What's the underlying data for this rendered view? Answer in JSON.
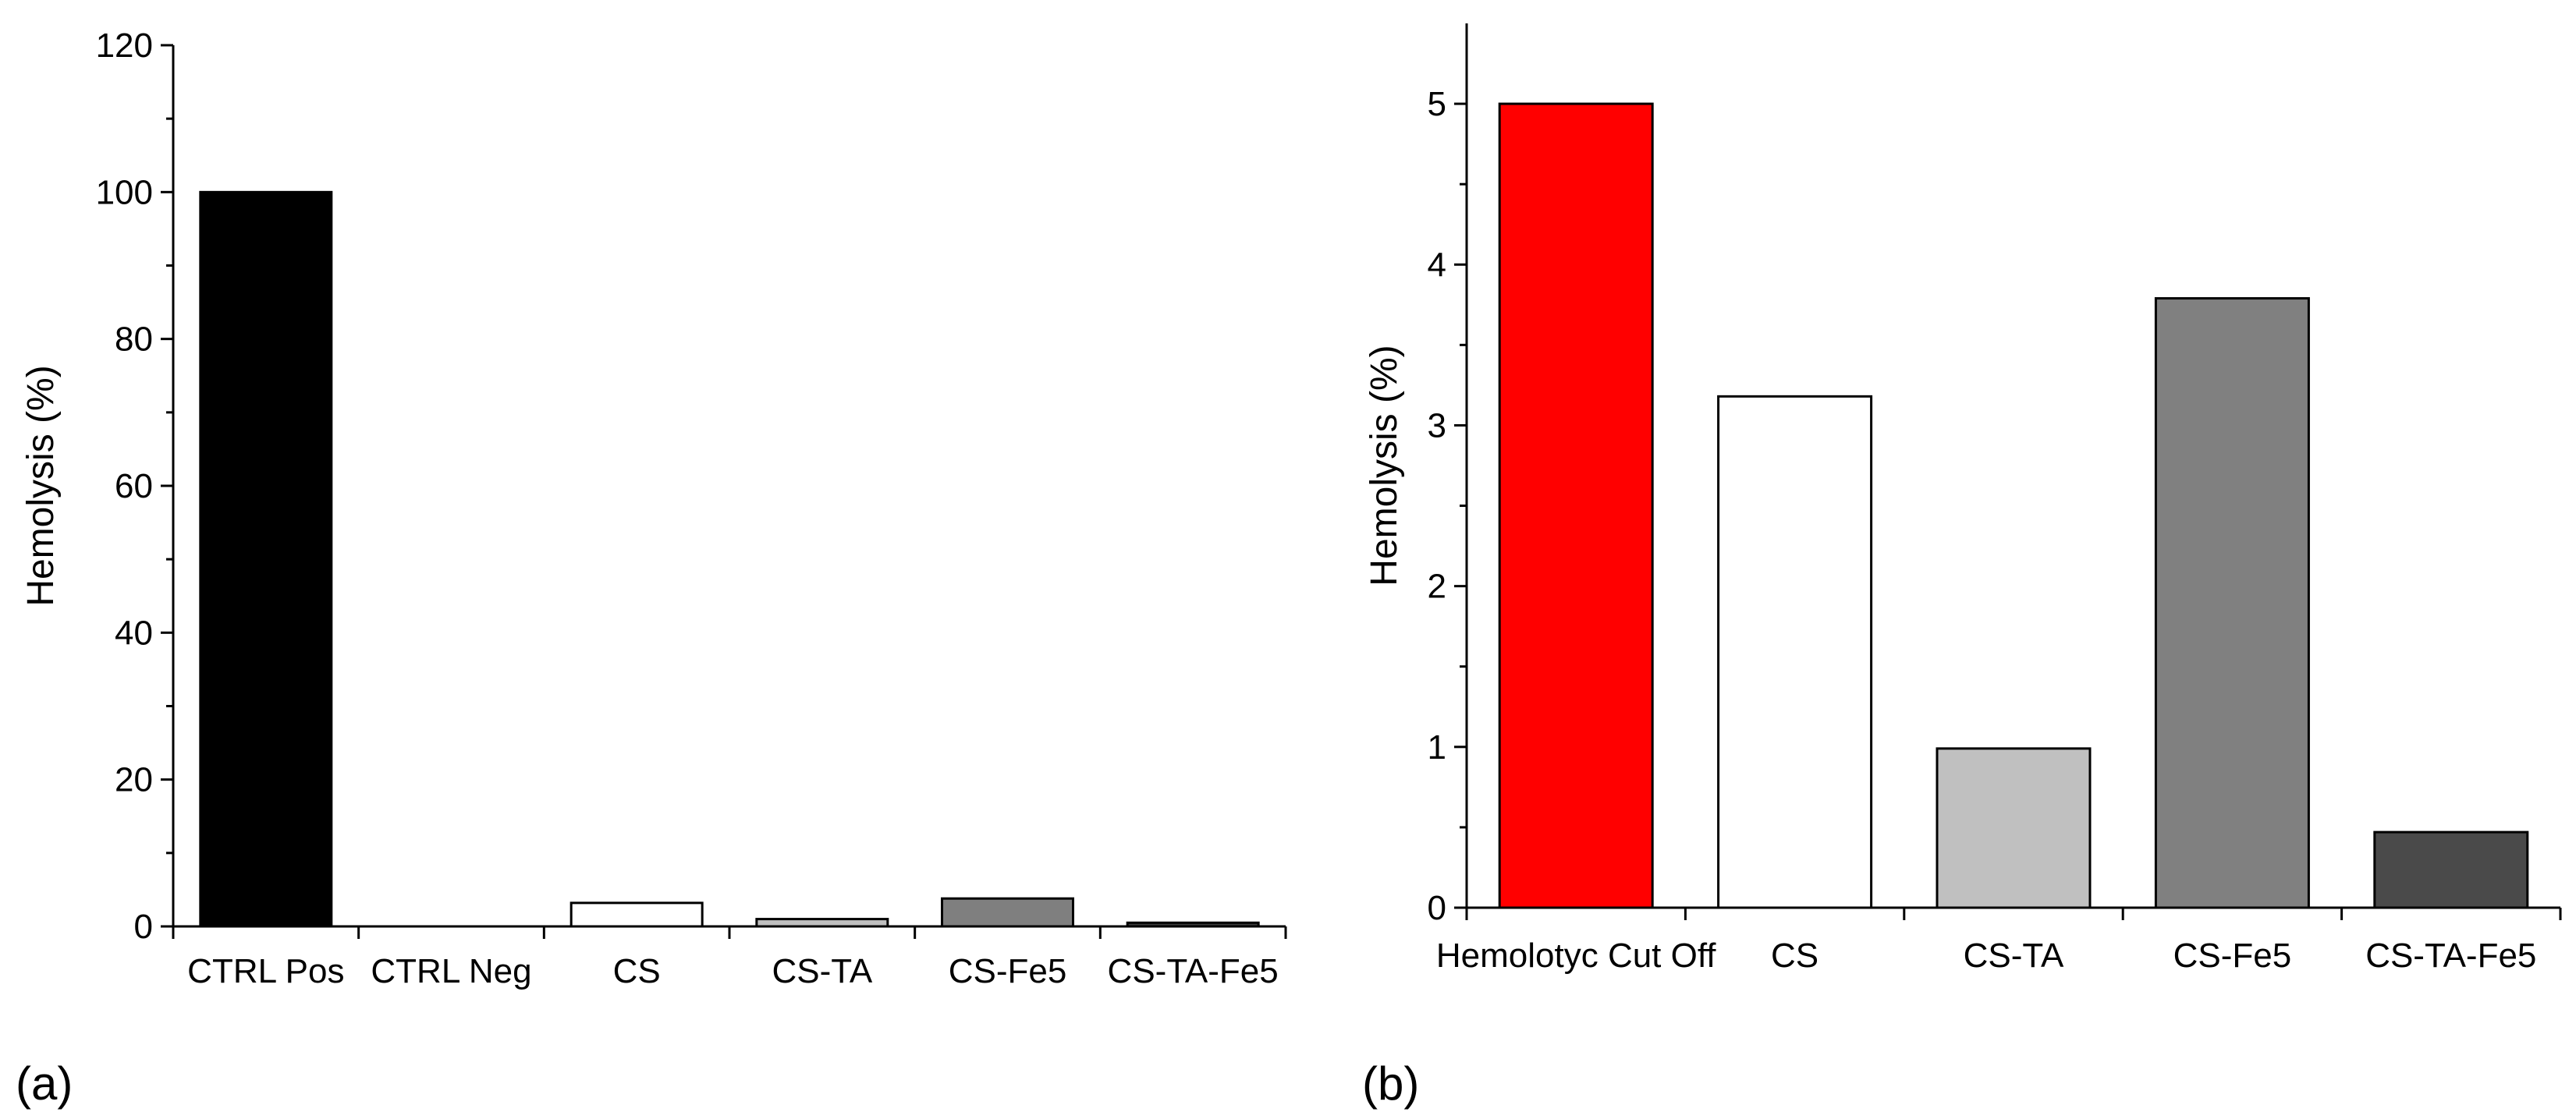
{
  "chart_data": [
    {
      "type": "bar",
      "panel_label": "(a)",
      "title": "",
      "xlabel": "",
      "ylabel": "Hemolysis (%)",
      "ylim": [
        0,
        120
      ],
      "yticks": [
        "0",
        "20",
        "40",
        "60",
        "80",
        "100",
        "120"
      ],
      "grid": false,
      "categories": [
        "CTRL Pos",
        "CTRL Neg",
        "CS",
        "CS-TA",
        "CS-Fe5",
        "CS-TA-Fe5"
      ],
      "values": [
        100,
        0,
        3.2,
        1.0,
        3.8,
        0.5
      ],
      "colors": [
        "#000000",
        "#ffffff",
        "#ffffff",
        "#bfbfbf",
        "#7f7f7f",
        "#3c3c3c"
      ]
    },
    {
      "type": "bar",
      "panel_label": "(b)",
      "title": "",
      "xlabel": "",
      "ylabel": "Hemolysis (%)",
      "ylim": [
        0,
        5.5
      ],
      "yticks": [
        "0",
        "1",
        "2",
        "3",
        "4",
        "5"
      ],
      "grid": false,
      "categories": [
        "Hemolotyc Cut Off",
        "CS",
        "CS-TA",
        "CS-Fe5",
        "CS-TA-Fe5"
      ],
      "values": [
        5.0,
        3.18,
        0.99,
        3.79,
        0.47
      ],
      "colors": [
        "#ff0000",
        "#ffffff",
        "#c0c0c0",
        "#808080",
        "#4a4a4a"
      ]
    }
  ]
}
